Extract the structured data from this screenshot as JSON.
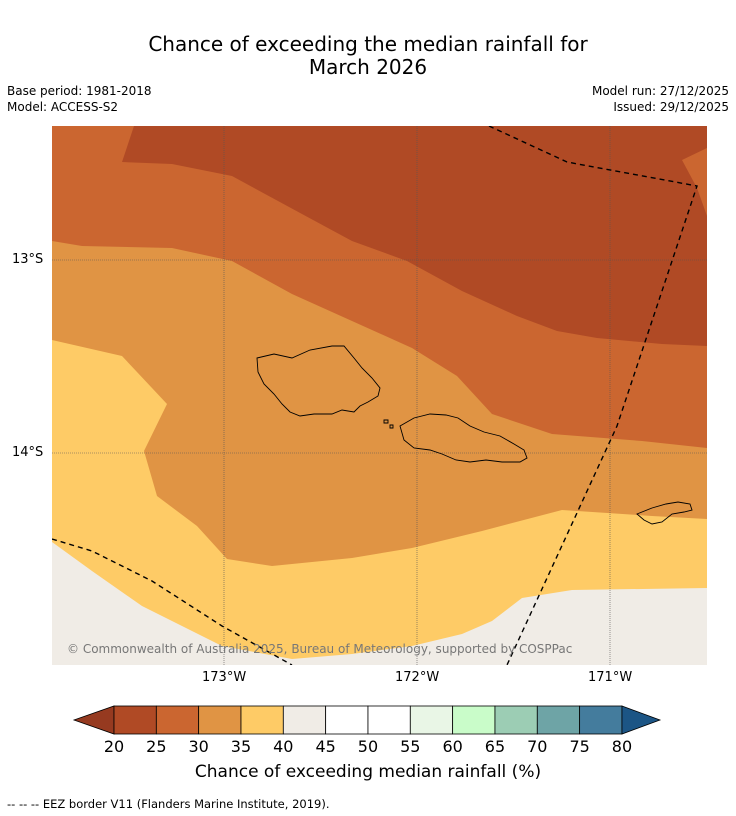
{
  "title": {
    "line1": "Chance of exceeding the median rainfall for",
    "line2": "March 2026"
  },
  "meta": {
    "base_period": "Base period: 1981-2018",
    "model": "Model: ACCESS-S2",
    "model_run": "Model run: 27/12/2025",
    "issued": "Issued: 29/12/2025"
  },
  "map": {
    "lat_labels": [
      "13°S",
      "14°S"
    ],
    "lon_labels": [
      "173°W",
      "172°W",
      "171°W"
    ],
    "copyright": "© Commonwealth of Australia 2025, Bureau of Meteorology, supported by COSPPac",
    "region_colors": {
      "bin_20_25": "#b04a25",
      "bin_25_30": "#cb6630",
      "bin_30_35": "#e09444",
      "bin_35_40": "#fecb66",
      "bin_40_45": "#f0ece6"
    }
  },
  "colorbar": {
    "title": "Chance of exceeding median rainfall (%)",
    "ticks": [
      "20",
      "25",
      "30",
      "35",
      "40",
      "45",
      "50",
      "55",
      "60",
      "65",
      "70",
      "75",
      "80"
    ],
    "colors": [
      "#b04a25",
      "#cb6630",
      "#e09444",
      "#fecb66",
      "#f0ece6",
      "#ffffff",
      "#ffffff",
      "#e9f6e6",
      "#c9fcc9",
      "#9ccdb4",
      "#6ea4a6",
      "#447c9d"
    ],
    "under_color": "#963a20",
    "over_color": "#1c5585"
  },
  "footnote": "--  --  -- EEZ border V11 (Flanders Marine Institute, 2019)."
}
